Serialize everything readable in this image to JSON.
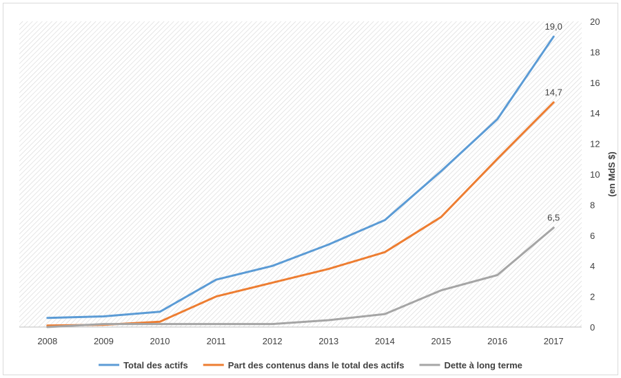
{
  "chart_data": {
    "type": "line",
    "title": "",
    "xlabel": "",
    "ylabel": "(en MdS $)",
    "ylim": [
      0,
      20
    ],
    "y_ticks": [
      "0",
      "2",
      "4",
      "6",
      "8",
      "10",
      "12",
      "14",
      "16",
      "18",
      "20"
    ],
    "categories": [
      "2008",
      "2009",
      "2010",
      "2011",
      "2012",
      "2013",
      "2014",
      "2015",
      "2016",
      "2017"
    ],
    "grid": false,
    "legend_position": "bottom",
    "series": [
      {
        "name": "Total des actifs",
        "color": "#5b9bd5",
        "values": [
          0.6,
          0.7,
          1.0,
          3.1,
          4.0,
          5.4,
          7.0,
          10.2,
          13.6,
          19.0
        ],
        "end_label": "19,0"
      },
      {
        "name": "Part des contenus dans le total des actifs",
        "color": "#ed7d31",
        "values": [
          0.1,
          0.15,
          0.35,
          2.0,
          2.9,
          3.8,
          4.9,
          7.2,
          11.0,
          14.7
        ],
        "end_label": "14,7"
      },
      {
        "name": "Dette à long terme",
        "color": "#a5a5a5",
        "values": [
          0.0,
          0.2,
          0.2,
          0.2,
          0.2,
          0.45,
          0.85,
          2.4,
          3.4,
          6.5
        ],
        "end_label": "6,5"
      }
    ]
  }
}
